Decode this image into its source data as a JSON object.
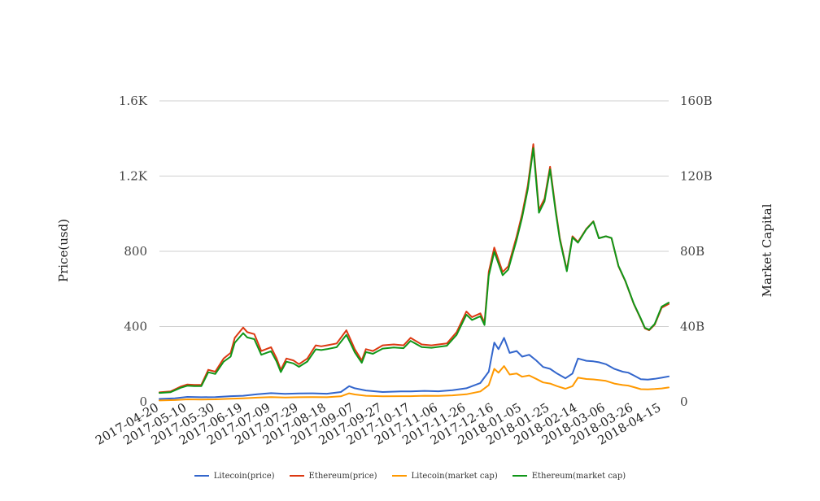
{
  "chart_data": {
    "type": "line",
    "title": "",
    "ylabel_left": "Price(usd)",
    "ylabel_right": "Market Capital",
    "ylim_left": [
      0,
      1600
    ],
    "ylim_right": [
      0,
      160000000000
    ],
    "yticks_left": [
      {
        "value": 0,
        "label": "0"
      },
      {
        "value": 400,
        "label": "400"
      },
      {
        "value": 800,
        "label": "800"
      },
      {
        "value": 1200,
        "label": "1.2K"
      },
      {
        "value": 1600,
        "label": "1.6K"
      }
    ],
    "yticks_right": [
      {
        "value": 0,
        "label": "0"
      },
      {
        "value": 40000000000,
        "label": "40B"
      },
      {
        "value": 80000000000,
        "label": "80B"
      },
      {
        "value": 120000000000,
        "label": "120B"
      },
      {
        "value": 160000000000,
        "label": "160B"
      }
    ],
    "xticks": [
      "2017-04-20",
      "2017-05-10",
      "2017-05-30",
      "2017-06-19",
      "2017-07-09",
      "2017-07-29",
      "2017-08-18",
      "2017-09-07",
      "2017-09-27",
      "2017-10-17",
      "2017-11-06",
      "2017-11-26",
      "2017-12-16",
      "2018-01-05",
      "2018-01-25",
      "2018-02-14",
      "2018-03-06",
      "2018-03-26",
      "2018-04-15"
    ],
    "x_range": [
      "2017-04-20",
      "2018-04-20"
    ],
    "grid": true,
    "legend_position": "bottom",
    "series": [
      {
        "name": "Litecoin(price)",
        "axis": "left",
        "color": "#3366cc",
        "x": [
          "2017-04-20",
          "2017-05-01",
          "2017-05-10",
          "2017-05-20",
          "2017-05-30",
          "2017-06-10",
          "2017-06-19",
          "2017-06-29",
          "2017-07-09",
          "2017-07-19",
          "2017-07-29",
          "2017-08-08",
          "2017-08-18",
          "2017-08-28",
          "2017-09-03",
          "2017-09-07",
          "2017-09-15",
          "2017-09-27",
          "2017-10-10",
          "2017-10-17",
          "2017-10-27",
          "2017-11-06",
          "2017-11-16",
          "2017-11-26",
          "2017-12-06",
          "2017-12-12",
          "2017-12-16",
          "2017-12-19",
          "2017-12-23",
          "2017-12-27",
          "2018-01-01",
          "2018-01-05",
          "2018-01-10",
          "2018-01-15",
          "2018-01-20",
          "2018-01-25",
          "2018-01-30",
          "2018-02-05",
          "2018-02-10",
          "2018-02-14",
          "2018-02-20",
          "2018-02-25",
          "2018-03-01",
          "2018-03-06",
          "2018-03-12",
          "2018-03-18",
          "2018-03-22",
          "2018-03-26",
          "2018-03-31",
          "2018-04-05",
          "2018-04-10",
          "2018-04-15",
          "2018-04-20"
        ],
        "y": [
          15,
          18,
          26,
          24,
          25,
          30,
          32,
          40,
          46,
          42,
          44,
          45,
          43,
          52,
          83,
          72,
          60,
          52,
          55,
          55,
          58,
          56,
          62,
          72,
          100,
          160,
          315,
          280,
          340,
          260,
          270,
          240,
          250,
          220,
          185,
          175,
          150,
          125,
          150,
          230,
          218,
          215,
          210,
          200,
          175,
          160,
          155,
          140,
          120,
          118,
          122,
          128,
          135
        ]
      },
      {
        "name": "Ethereum(price)",
        "axis": "left",
        "color": "#dc3912",
        "x": [
          "2017-04-20",
          "2017-04-28",
          "2017-05-05",
          "2017-05-10",
          "2017-05-15",
          "2017-05-20",
          "2017-05-25",
          "2017-05-30",
          "2017-06-05",
          "2017-06-10",
          "2017-06-13",
          "2017-06-19",
          "2017-06-22",
          "2017-06-27",
          "2017-07-02",
          "2017-07-09",
          "2017-07-13",
          "2017-07-16",
          "2017-07-20",
          "2017-07-25",
          "2017-07-29",
          "2017-08-04",
          "2017-08-10",
          "2017-08-14",
          "2017-08-18",
          "2017-08-25",
          "2017-09-01",
          "2017-09-04",
          "2017-09-07",
          "2017-09-12",
          "2017-09-15",
          "2017-09-20",
          "2017-09-27",
          "2017-10-05",
          "2017-10-12",
          "2017-10-17",
          "2017-10-25",
          "2017-11-01",
          "2017-11-06",
          "2017-11-12",
          "2017-11-19",
          "2017-11-26",
          "2017-11-30",
          "2017-12-06",
          "2017-12-09",
          "2017-12-12",
          "2017-12-16",
          "2017-12-22",
          "2017-12-26",
          "2018-01-01",
          "2018-01-05",
          "2018-01-09",
          "2018-01-13",
          "2018-01-17",
          "2018-01-21",
          "2018-01-25",
          "2018-01-29",
          "2018-02-01",
          "2018-02-06",
          "2018-02-10",
          "2018-02-14",
          "2018-02-20",
          "2018-02-25",
          "2018-03-01",
          "2018-03-06",
          "2018-03-10",
          "2018-03-15",
          "2018-03-20",
          "2018-03-26",
          "2018-03-31",
          "2018-04-03",
          "2018-04-06",
          "2018-04-10",
          "2018-04-15",
          "2018-04-20"
        ],
        "y": [
          50,
          55,
          80,
          92,
          90,
          90,
          170,
          160,
          230,
          260,
          340,
          395,
          370,
          360,
          270,
          290,
          230,
          170,
          230,
          220,
          200,
          230,
          300,
          295,
          300,
          310,
          380,
          330,
          280,
          220,
          280,
          270,
          300,
          305,
          300,
          340,
          305,
          300,
          305,
          310,
          370,
          480,
          450,
          470,
          420,
          690,
          820,
          690,
          720,
          880,
          1000,
          1150,
          1370,
          1020,
          1080,
          1250,
          1020,
          870,
          700,
          880,
          850,
          920,
          960,
          870,
          880,
          870,
          720,
          640,
          520,
          440,
          390,
          380,
          410,
          500,
          520
        ]
      },
      {
        "name": "Litecoin(market cap)",
        "axis": "right",
        "color": "#ff9900",
        "x": [
          "2017-04-20",
          "2017-05-01",
          "2017-05-10",
          "2017-05-20",
          "2017-05-30",
          "2017-06-10",
          "2017-06-19",
          "2017-06-29",
          "2017-07-09",
          "2017-07-19",
          "2017-07-29",
          "2017-08-08",
          "2017-08-18",
          "2017-08-28",
          "2017-09-03",
          "2017-09-07",
          "2017-09-15",
          "2017-09-27",
          "2017-10-10",
          "2017-10-17",
          "2017-10-27",
          "2017-11-06",
          "2017-11-16",
          "2017-11-26",
          "2017-12-06",
          "2017-12-12",
          "2017-12-16",
          "2017-12-19",
          "2017-12-23",
          "2017-12-27",
          "2018-01-01",
          "2018-01-05",
          "2018-01-10",
          "2018-01-15",
          "2018-01-20",
          "2018-01-25",
          "2018-01-30",
          "2018-02-05",
          "2018-02-10",
          "2018-02-14",
          "2018-02-20",
          "2018-02-25",
          "2018-03-01",
          "2018-03-06",
          "2018-03-12",
          "2018-03-18",
          "2018-03-22",
          "2018-03-26",
          "2018-03-31",
          "2018-04-05",
          "2018-04-10",
          "2018-04-15",
          "2018-04-20"
        ],
        "y": [
          700000000,
          900000000,
          1300000000,
          1200000000,
          1300000000,
          1600000000,
          1800000000,
          2200000000,
          2500000000,
          2300000000,
          2400000000,
          2500000000,
          2400000000,
          2900000000,
          4500000000,
          3900000000,
          3200000000,
          2900000000,
          3000000000,
          3000000000,
          3200000000,
          3100000000,
          3400000000,
          4000000000,
          5500000000,
          8800000000,
          17500000000,
          15500000000,
          19000000000,
          14500000000,
          15000000000,
          13300000000,
          14000000000,
          12200000000,
          10300000000,
          9700000000,
          8300000000,
          6900000000,
          8300000000,
          12800000000,
          12100000000,
          11900000000,
          11600000000,
          11100000000,
          9700000000,
          8900000000,
          8600000000,
          7800000000,
          6700000000,
          6600000000,
          6800000000,
          7100000000,
          7600000000
        ]
      },
      {
        "name": "Ethereum(market cap)",
        "axis": "right",
        "color": "#109618",
        "x": [
          "2017-04-20",
          "2017-04-28",
          "2017-05-05",
          "2017-05-10",
          "2017-05-15",
          "2017-05-20",
          "2017-05-25",
          "2017-05-30",
          "2017-06-05",
          "2017-06-10",
          "2017-06-13",
          "2017-06-19",
          "2017-06-22",
          "2017-06-27",
          "2017-07-02",
          "2017-07-09",
          "2017-07-13",
          "2017-07-16",
          "2017-07-20",
          "2017-07-25",
          "2017-07-29",
          "2017-08-04",
          "2017-08-10",
          "2017-08-14",
          "2017-08-18",
          "2017-08-25",
          "2017-09-01",
          "2017-09-04",
          "2017-09-07",
          "2017-09-12",
          "2017-09-15",
          "2017-09-20",
          "2017-09-27",
          "2017-10-05",
          "2017-10-12",
          "2017-10-17",
          "2017-10-25",
          "2017-11-01",
          "2017-11-06",
          "2017-11-12",
          "2017-11-19",
          "2017-11-26",
          "2017-11-30",
          "2017-12-06",
          "2017-12-09",
          "2017-12-12",
          "2017-12-16",
          "2017-12-22",
          "2017-12-26",
          "2018-01-01",
          "2018-01-05",
          "2018-01-09",
          "2018-01-13",
          "2018-01-17",
          "2018-01-21",
          "2018-01-25",
          "2018-01-29",
          "2018-02-01",
          "2018-02-06",
          "2018-02-10",
          "2018-02-14",
          "2018-02-20",
          "2018-02-25",
          "2018-03-01",
          "2018-03-06",
          "2018-03-10",
          "2018-03-15",
          "2018-03-20",
          "2018-03-26",
          "2018-03-31",
          "2018-04-03",
          "2018-04-06",
          "2018-04-10",
          "2018-04-15",
          "2018-04-20"
        ],
        "y": [
          4700000000,
          5100000000,
          7400000000,
          8500000000,
          8300000000,
          8300000000,
          15700000000,
          14800000000,
          21300000000,
          24000000000,
          31400000000,
          36500000000,
          34200000000,
          33300000000,
          25000000000,
          26900000000,
          21300000000,
          15800000000,
          21300000000,
          20400000000,
          18600000000,
          21400000000,
          27900000000,
          27500000000,
          28000000000,
          29000000000,
          35600000000,
          31000000000,
          26300000000,
          20700000000,
          26400000000,
          25500000000,
          28300000000,
          28900000000,
          28500000000,
          32400000000,
          29100000000,
          28700000000,
          29200000000,
          29800000000,
          35600000000,
          46300000000,
          43500000000,
          45500000000,
          40800000000,
          67000000000,
          79800000000,
          67300000000,
          70300000000,
          86200000000,
          98100000000,
          113000000000,
          134800000000,
          100500000000,
          106600000000,
          123500000000,
          100900000000,
          86100000000,
          69400000000,
          87400000000,
          84600000000,
          91700000000,
          95800000000,
          86900000000,
          88000000000,
          87100000000,
          72200000000,
          64200000000,
          52200000000,
          44300000000,
          39300000000,
          38300000000,
          41400000000,
          50600000000,
          52700000000
        ]
      }
    ]
  }
}
